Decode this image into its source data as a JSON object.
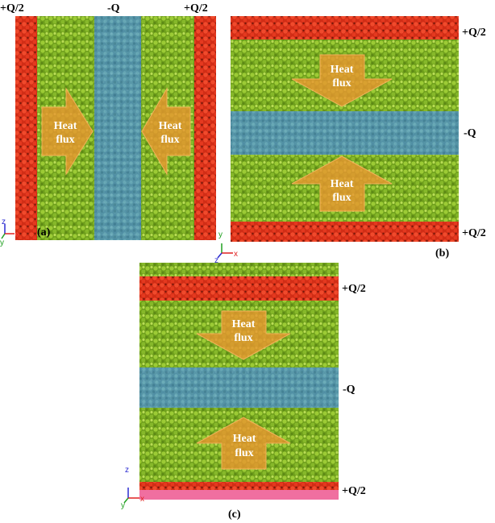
{
  "colors": {
    "particles_green": "#7fb51e",
    "particles_light": "#b4d94a",
    "hot_red": "#e3381e",
    "cold_blue": "#4f95c4",
    "arrow_orange": "#e8962f",
    "base_pink": "#f06fa0"
  },
  "panels": [
    {
      "id": "a",
      "label": "(a)",
      "flux_direction": "inward-horizontal",
      "source_labels": [
        "+Q/2",
        "-Q",
        "+Q/2"
      ],
      "arrow_text": [
        "Heat",
        "flux"
      ],
      "axes": [
        "z",
        "x",
        "y"
      ]
    },
    {
      "id": "b",
      "label": "(b)",
      "flux_direction": "inward-vertical",
      "source_labels": [
        "+Q/2",
        "-Q",
        "+Q/2"
      ],
      "arrow_text": [
        "Heat",
        "flux"
      ],
      "axes": [
        "y",
        "x",
        "z"
      ]
    },
    {
      "id": "c",
      "label": "(c)",
      "flux_direction": "inward-vertical",
      "source_labels": [
        "+Q/2",
        "-Q",
        "+Q/2"
      ],
      "arrow_text": [
        "Heat",
        "flux"
      ],
      "axes": [
        "z",
        "x",
        "y"
      ]
    }
  ]
}
